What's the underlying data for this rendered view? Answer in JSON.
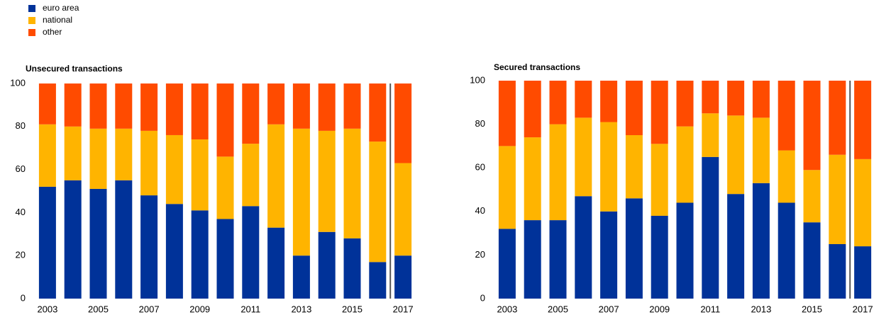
{
  "chart_data": [
    {
      "type": "bar",
      "title": "Unsecured transactions",
      "categories": [
        "2003",
        null,
        "2005",
        null,
        "2007",
        null,
        "2009",
        null,
        "2011",
        null,
        "2013",
        null,
        "2015",
        null,
        "2017"
      ],
      "series": [
        {
          "name": "euro area",
          "color": "#003299",
          "values": [
            52,
            55,
            51,
            55,
            48,
            44,
            41,
            37,
            43,
            33,
            20,
            31,
            28,
            17,
            20
          ]
        },
        {
          "name": "national",
          "color": "#ffb400",
          "values": [
            29,
            25,
            28,
            24,
            30,
            32,
            33,
            29,
            29,
            48,
            59,
            47,
            51,
            56,
            43
          ]
        },
        {
          "name": "other",
          "color": "#ff4b00",
          "values": [
            19,
            20,
            21,
            21,
            22,
            24,
            26,
            34,
            28,
            19,
            21,
            22,
            21,
            27,
            37
          ]
        }
      ],
      "ylim": [
        0,
        100
      ],
      "yticks": [
        0,
        20,
        40,
        60,
        80,
        100
      ]
    },
    {
      "type": "bar",
      "title": "Secured transactions",
      "categories": [
        "2003",
        null,
        "2005",
        null,
        "2007",
        null,
        "2009",
        null,
        "2011",
        null,
        "2013",
        null,
        "2015",
        null,
        "2017"
      ],
      "series": [
        {
          "name": "euro area",
          "color": "#003299",
          "values": [
            32,
            36,
            36,
            47,
            40,
            46,
            38,
            44,
            65,
            48,
            53,
            44,
            35,
            25,
            24
          ]
        },
        {
          "name": "national",
          "color": "#ffb400",
          "values": [
            38,
            38,
            44,
            36,
            41,
            29,
            33,
            35,
            20,
            36,
            30,
            24,
            24,
            41,
            40
          ]
        },
        {
          "name": "other",
          "color": "#ff4b00",
          "values": [
            30,
            26,
            20,
            17,
            19,
            25,
            29,
            21,
            15,
            16,
            17,
            32,
            41,
            34,
            36
          ]
        }
      ],
      "ylim": [
        0,
        100
      ],
      "yticks": [
        0,
        20,
        40,
        60,
        80,
        100
      ]
    }
  ]
}
